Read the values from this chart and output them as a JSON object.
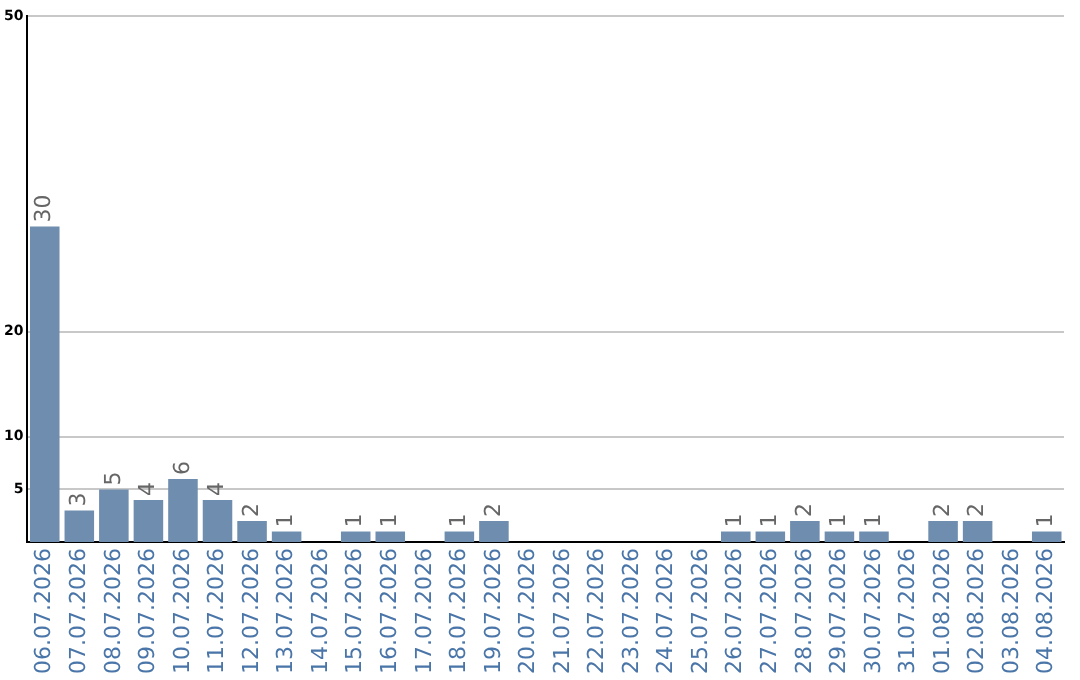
{
  "chart_data": {
    "type": "bar",
    "categories": [
      "06.07.2026",
      "07.07.2026",
      "08.07.2026",
      "09.07.2026",
      "10.07.2026",
      "11.07.2026",
      "12.07.2026",
      "13.07.2026",
      "14.07.2026",
      "15.07.2026",
      "16.07.2026",
      "17.07.2026",
      "18.07.2026",
      "19.07.2026",
      "20.07.2026",
      "21.07.2026",
      "22.07.2026",
      "23.07.2026",
      "24.07.2026",
      "25.07.2026",
      "26.07.2026",
      "27.07.2026",
      "28.07.2026",
      "29.07.2026",
      "30.07.2026",
      "31.07.2026",
      "01.08.2026",
      "02.08.2026",
      "03.08.2026",
      "04.08.2026"
    ],
    "values": [
      30,
      3,
      5,
      4,
      6,
      4,
      2,
      1,
      0,
      1,
      1,
      0,
      1,
      2,
      0,
      0,
      0,
      0,
      0,
      0,
      1,
      1,
      2,
      1,
      1,
      0,
      2,
      2,
      0,
      1
    ],
    "value_labels": [
      "30",
      "3",
      "5",
      "4",
      "6",
      "4",
      "2",
      "1",
      null,
      "1",
      "1",
      null,
      "1",
      "2",
      null,
      null,
      null,
      null,
      null,
      null,
      "1",
      "1",
      "2",
      "1",
      "1",
      null,
      "2",
      "2",
      null,
      "1"
    ],
    "color": "#6f8dae",
    "ylim": [
      0,
      50
    ],
    "yticks": [
      5,
      10,
      20,
      50
    ],
    "grid": "y"
  }
}
